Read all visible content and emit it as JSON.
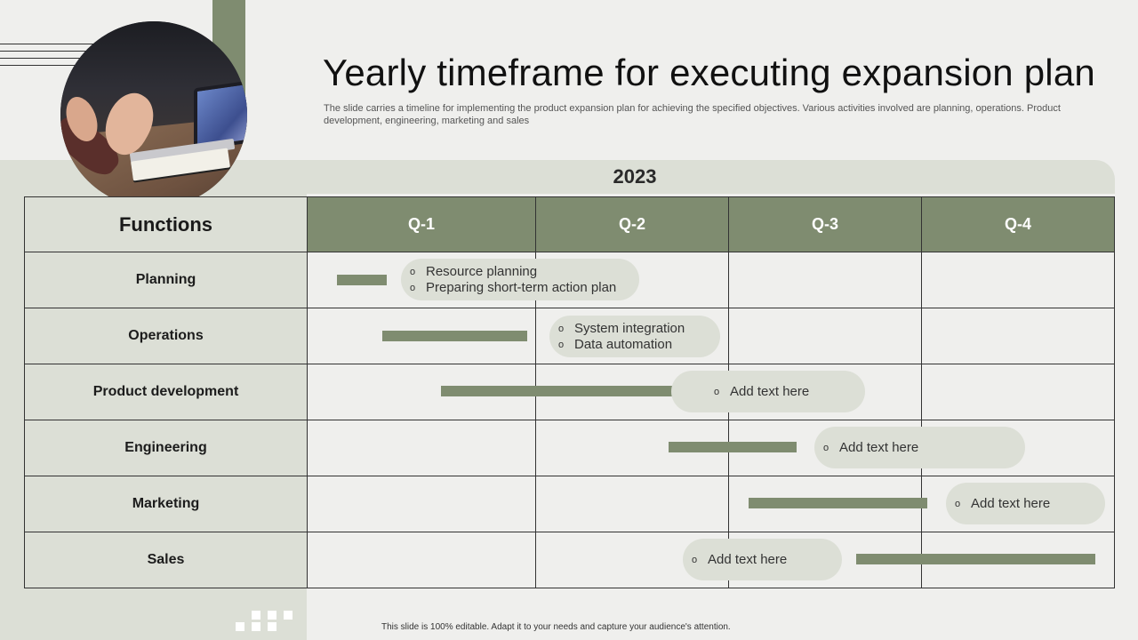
{
  "title": "Yearly timeframe for executing expansion plan",
  "subtitle": "The slide carries a timeline for implementing the product expansion plan for achieving the specified objectives. Various activities involved are planning, operations. Product development, engineering, marketing and sales",
  "year": "2023",
  "table": {
    "functions_header": "Functions",
    "quarters": [
      "Q-1",
      "Q-2",
      "Q-3",
      "Q-4"
    ],
    "rows": [
      "Planning",
      "Operations",
      "Product development",
      "Engineering",
      "Marketing",
      "Sales"
    ]
  },
  "callouts": {
    "planning": [
      "Resource planning",
      "Preparing short-term action plan"
    ],
    "operations": [
      "System integration",
      "Data automation"
    ],
    "product_development": [
      "Add text here"
    ],
    "engineering": [
      "Add text here"
    ],
    "marketing": [
      "Add text here"
    ],
    "sales": [
      "Add text here"
    ]
  },
  "bullet_symbol": "o",
  "footer": "This slide is 100% editable. Adapt it to your needs and capture your audience's attention.",
  "colors": {
    "accent": "#7f8c70",
    "panel": "#dcdfd6",
    "background": "#efefed"
  }
}
